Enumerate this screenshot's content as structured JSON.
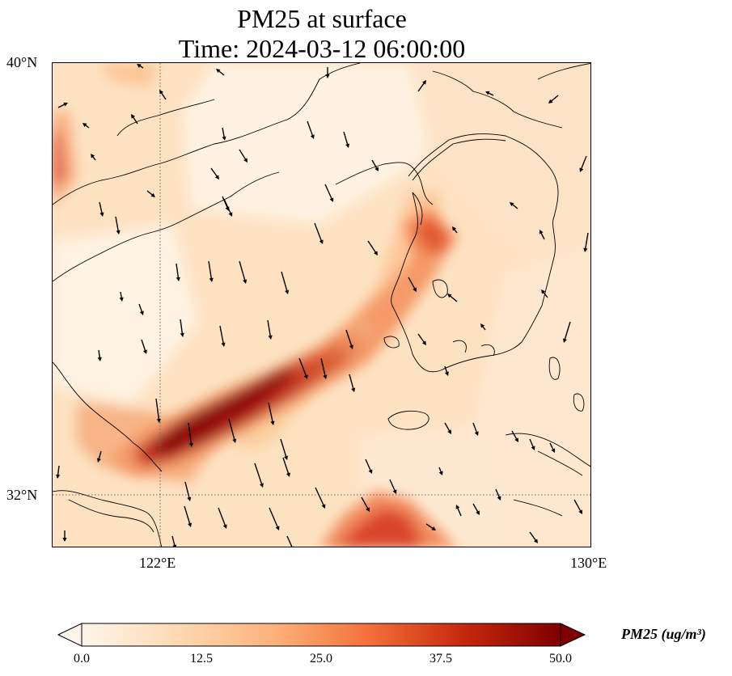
{
  "title": {
    "line1": "PM25 at surface",
    "line2": "Time: 2024-03-12 06:00:00"
  },
  "axes": {
    "lat_ticks": [
      "40°N",
      "32°N"
    ],
    "lon_ticks": [
      "122°E",
      "130°E"
    ],
    "lon_range": [
      120,
      130
    ],
    "lat_range": [
      31,
      40
    ],
    "gridlines": "dotted at 122°E and 32°N"
  },
  "colorbar": {
    "label": "PM25 (ug/m³)",
    "ticks": [
      "0.0",
      "12.5",
      "25.0",
      "37.5",
      "50.0"
    ],
    "min": 0,
    "max": 50,
    "extend": "both",
    "colors": [
      "#fff5eb",
      "#fdd9b3",
      "#fdb27a",
      "#f3703a",
      "#c5280c",
      "#7f0000"
    ]
  },
  "map_features": [
    "coastline",
    "pm25-shading",
    "wind-vectors"
  ],
  "chart_data": {
    "type": "heatmap",
    "variable": "PM25",
    "units": "ug/m^3",
    "hotspots": [
      {
        "region": "band from Yellow Sea to Jiangsu coast",
        "lon": [
          121.0,
          126.0
        ],
        "lat": [
          32.5,
          36.0
        ],
        "peak": 50
      },
      {
        "region": "west Korea coast",
        "lon": [
          126.3,
          127.3
        ],
        "lat": [
          36.5,
          37.5
        ],
        "peak": 30
      },
      {
        "region": "East China Sea southeast",
        "lon": [
          125.0,
          127.5
        ],
        "lat": [
          31.0,
          32.0
        ],
        "peak": 32
      },
      {
        "region": "Shandong northwest edge",
        "lon": [
          120.0,
          120.7
        ],
        "lat": [
          37.5,
          39.0
        ],
        "peak": 30
      }
    ],
    "wind_direction": "predominantly northerly (southward)"
  }
}
